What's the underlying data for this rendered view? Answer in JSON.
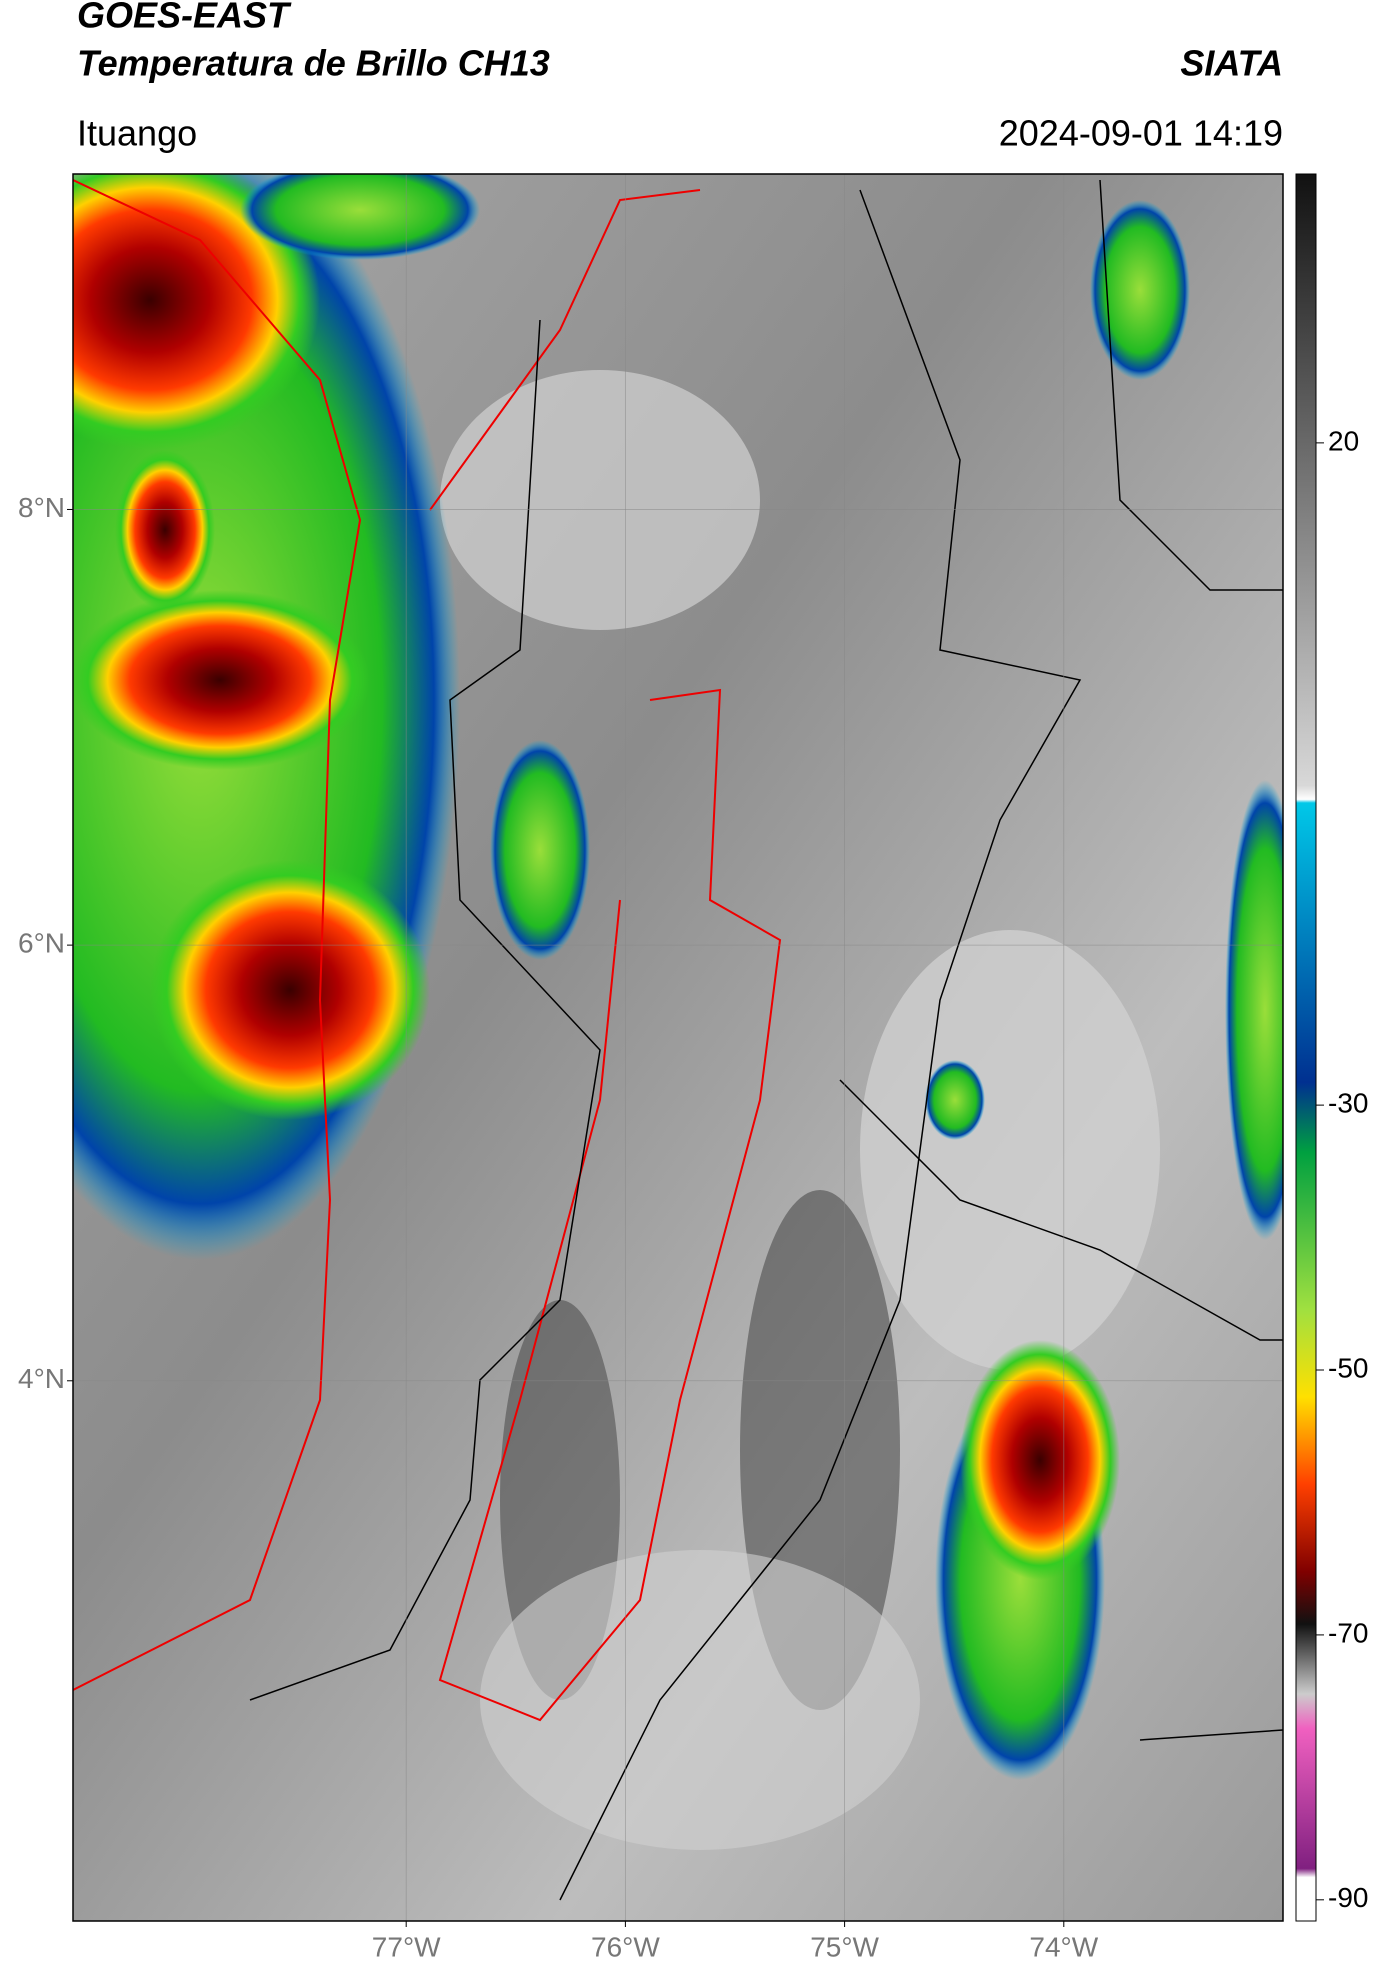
{
  "header": {
    "title": "GOES-EAST",
    "subtitle": "Temperatura de Brillo CH13",
    "source": "SIATA",
    "location": "Ituango",
    "datetime": "2024-09-01 14:19"
  },
  "map": {
    "lonlim": [
      -78.52,
      -73
    ],
    "latlim": [
      1.52,
      9.54
    ],
    "xticks": [
      {
        "value": -77,
        "label": "77°W"
      },
      {
        "value": -76,
        "label": "76°W"
      },
      {
        "value": -75,
        "label": "75°W"
      },
      {
        "value": -74,
        "label": "74°W"
      }
    ],
    "yticks": [
      {
        "value": 8,
        "label": "8°N"
      },
      {
        "value": 6,
        "label": "6°N"
      },
      {
        "value": 4,
        "label": "4°N"
      }
    ],
    "grid": true
  },
  "colorbar": {
    "lim": [
      -91.6,
      40.3
    ],
    "ticks": [
      20,
      -30,
      -50,
      -70,
      -90
    ]
  }
}
